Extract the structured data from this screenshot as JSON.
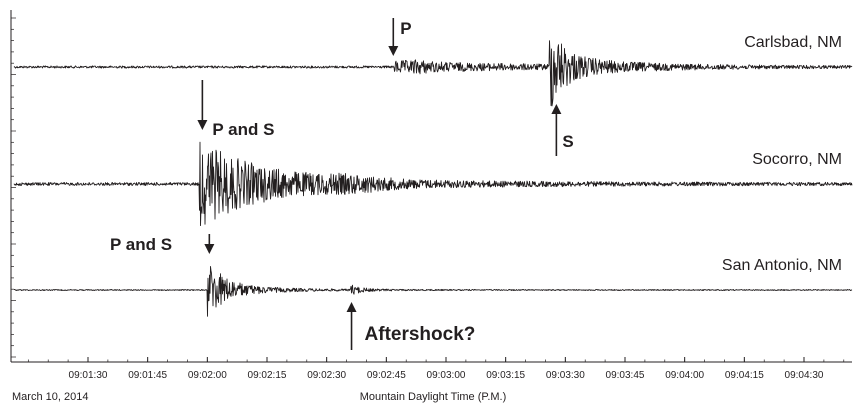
{
  "chart_data": {
    "type": "line",
    "title": "",
    "xlabel": "Mountain Daylight Time (P.M.)",
    "ylabel": "",
    "date": "March 10, 2014",
    "x_ticks": [
      "09:01:30",
      "09:01:45",
      "09:02:00",
      "09:02:15",
      "09:02:30",
      "09:02:45",
      "09:03:00",
      "09:03:15",
      "09:03:30",
      "09:03:45",
      "09:04:00",
      "09:04:15",
      "09:04:30"
    ],
    "xlim": [
      "09:01:15",
      "09:04:45"
    ],
    "series": [
      {
        "name": "Carlsbad, NM",
        "onsets": [
          {
            "label": "P",
            "time": "09:02:47"
          },
          {
            "label": "S",
            "time": "09:03:28"
          }
        ]
      },
      {
        "name": "Socorro, NM",
        "onsets": [
          {
            "label": "P and S",
            "time": "09:01:58"
          }
        ]
      },
      {
        "name": "San Antonio, NM",
        "onsets": [
          {
            "label": "P and S",
            "time": "09:02:00"
          },
          {
            "label": "Aftershock?",
            "time": "09:02:36"
          }
        ]
      }
    ],
    "grid": false,
    "legend": "none"
  },
  "colors": {
    "ink": "#231f20",
    "background": "#ffffff"
  }
}
